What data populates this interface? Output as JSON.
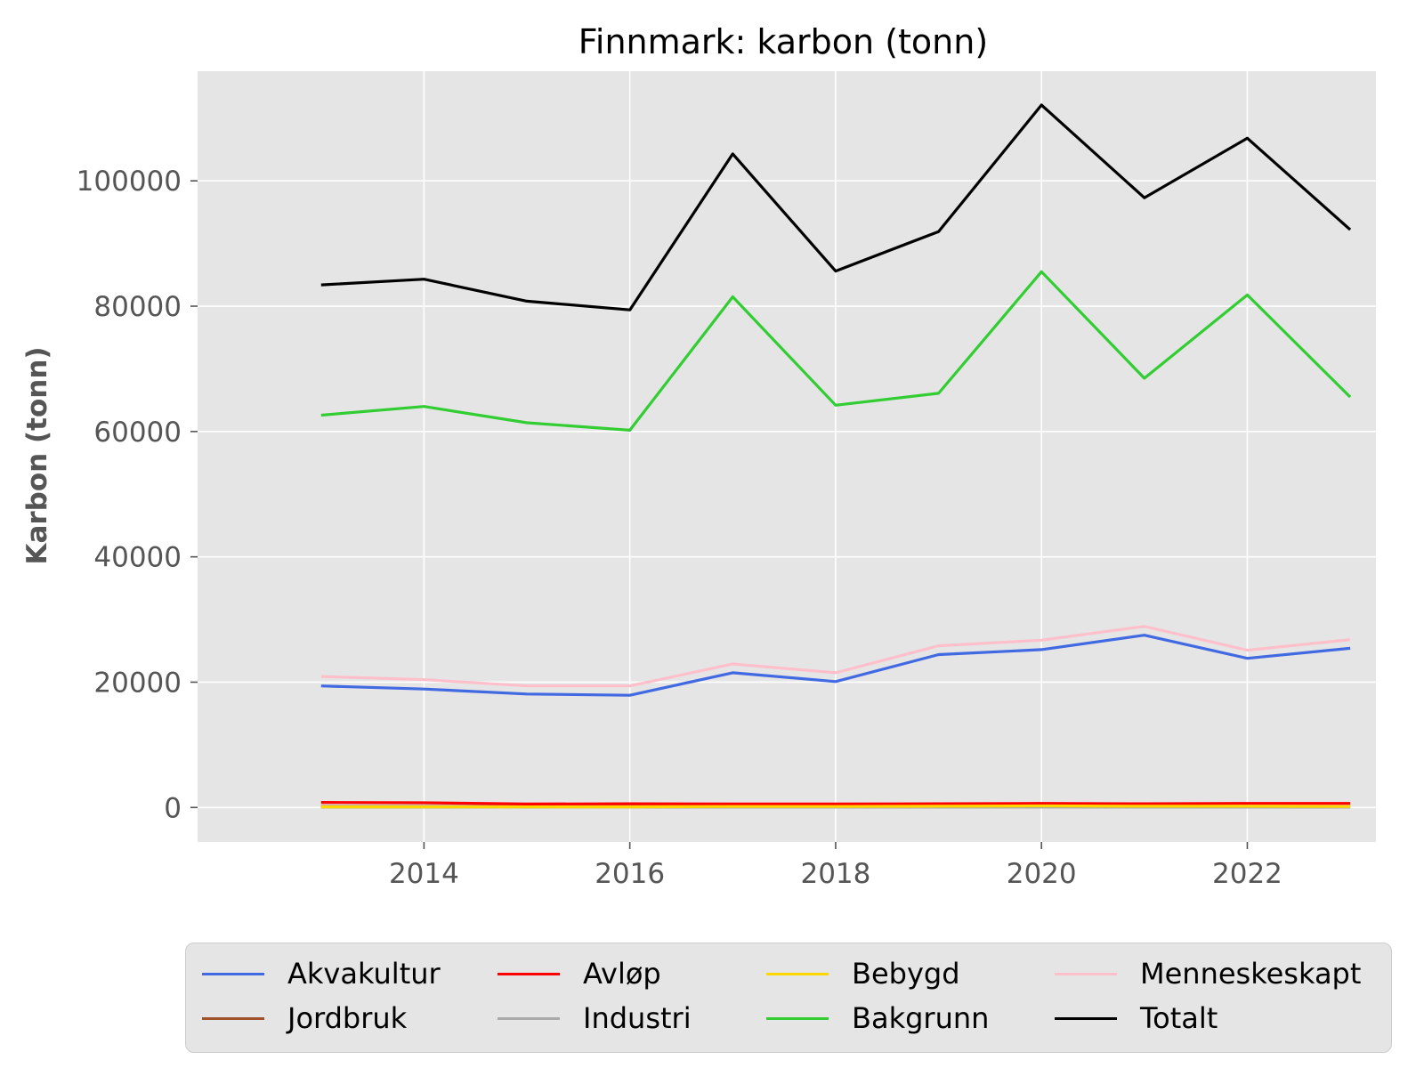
{
  "chart_data": {
    "type": "line",
    "title": "Finnmark: karbon (tonn)",
    "xlabel": "",
    "ylabel": "Karbon (tonn)",
    "x": [
      2013,
      2014,
      2015,
      2016,
      2017,
      2018,
      2019,
      2020,
      2021,
      2022,
      2023
    ],
    "xlim": [
      2011.8,
      2023.25
    ],
    "ylim": [
      -5500,
      117500
    ],
    "xticks": [
      2014,
      2016,
      2018,
      2020,
      2022
    ],
    "xtick_labels": [
      "2014",
      "2016",
      "2018",
      "2020",
      "2022"
    ],
    "yticks": [
      0,
      20000,
      40000,
      60000,
      80000,
      100000
    ],
    "ytick_labels": [
      "0",
      "20000",
      "40000",
      "60000",
      "80000",
      "100000"
    ],
    "grid": true,
    "legend_position": "bottom-center",
    "background": "#e5e5e5",
    "series": [
      {
        "name": "Akvakultur",
        "color": "#4169e1",
        "values": [
          19400,
          18900,
          18100,
          17900,
          21500,
          20100,
          24400,
          25200,
          27500,
          23800,
          25400
        ]
      },
      {
        "name": "Jordbruk",
        "color": "#a0522d",
        "values": [
          150,
          150,
          130,
          130,
          130,
          130,
          140,
          140,
          140,
          140,
          140
        ]
      },
      {
        "name": "Avløp",
        "color": "#ff0000",
        "values": [
          800,
          750,
          550,
          600,
          550,
          550,
          600,
          650,
          600,
          650,
          650
        ]
      },
      {
        "name": "Industri",
        "color": "#aaaaaa",
        "values": [
          50,
          50,
          50,
          50,
          50,
          50,
          50,
          50,
          50,
          50,
          50
        ]
      },
      {
        "name": "Bebygd",
        "color": "#ffd700",
        "values": [
          100,
          100,
          100,
          100,
          150,
          150,
          200,
          250,
          200,
          200,
          150
        ]
      },
      {
        "name": "Bakgrunn",
        "color": "#32cd32",
        "values": [
          62600,
          64000,
          61400,
          60200,
          81500,
          64200,
          66100,
          85500,
          68500,
          81800,
          65500
        ]
      },
      {
        "name": "Menneskeskapt",
        "color": "#ffc0cb",
        "values": [
          20900,
          20400,
          19400,
          19400,
          22900,
          21500,
          25800,
          26700,
          28900,
          25100,
          26800
        ]
      },
      {
        "name": "Totalt",
        "color": "#000000",
        "values": [
          83400,
          84300,
          80800,
          79400,
          104300,
          85600,
          91900,
          112100,
          97300,
          106800,
          92200
        ]
      }
    ]
  },
  "legend_order": [
    "Akvakultur",
    "Avløp",
    "Bebygd",
    "Menneskeskapt",
    "Jordbruk",
    "Industri",
    "Bakgrunn",
    "Totalt"
  ]
}
